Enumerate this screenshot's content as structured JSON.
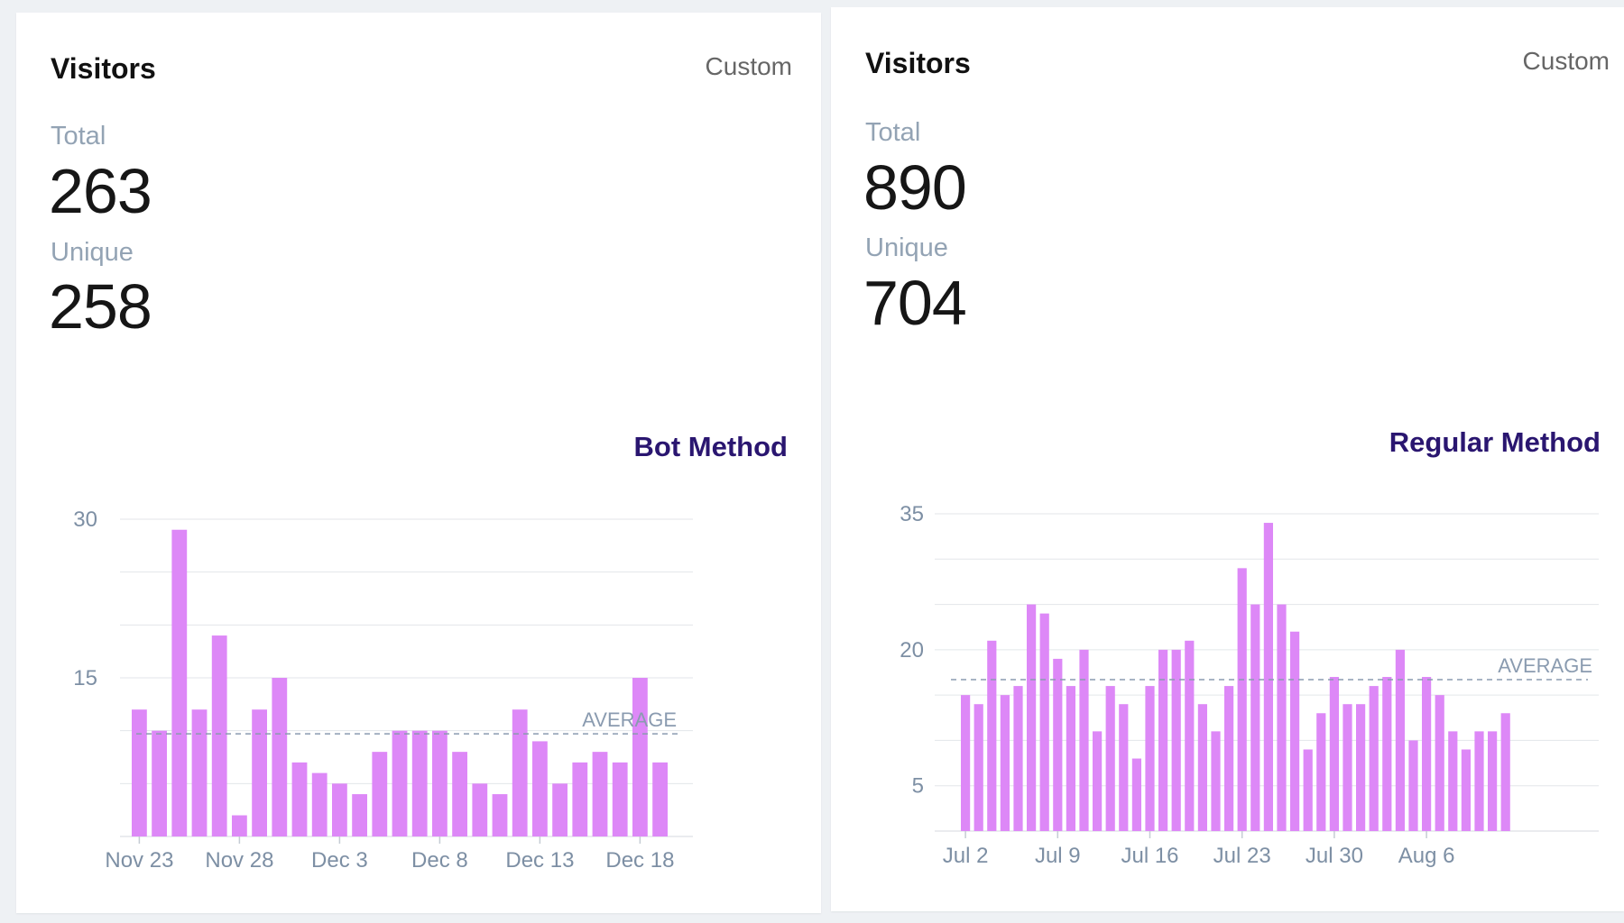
{
  "cards": [
    {
      "title": "Visitors",
      "range": "Custom",
      "total_label": "Total",
      "total_value": "263",
      "unique_label": "Unique",
      "unique_value": "258",
      "method_label": "Bot Method",
      "average_label": "AVERAGE"
    },
    {
      "title": "Visitors",
      "range": "Custom",
      "total_label": "Total",
      "total_value": "890",
      "unique_label": "Unique",
      "unique_value": "704",
      "method_label": "Regular Method",
      "average_label": "AVERAGE"
    }
  ],
  "colors": {
    "bar": "#dd88f7",
    "grid": "#e3e6ea",
    "average": "#8a9bb0",
    "method": "#2a1670"
  },
  "chart_data": [
    {
      "type": "bar",
      "title": "",
      "series": [
        {
          "values": [
            12,
            10,
            29,
            12,
            19,
            2,
            12,
            15,
            7,
            6,
            5,
            4,
            8,
            10,
            10,
            10,
            8,
            5,
            4,
            12,
            9,
            5,
            7,
            8,
            7,
            15,
            7
          ]
        }
      ],
      "x_tick_labels": [
        "Nov 23",
        "Nov 28",
        "Dec 3",
        "Dec 8",
        "Dec 13",
        "Dec 18"
      ],
      "y_ticks": [
        15,
        30
      ],
      "ylim": [
        0,
        30
      ],
      "average": 9.7,
      "grid": true
    },
    {
      "type": "bar",
      "title": "",
      "series": [
        {
          "values": [
            15,
            14,
            21,
            15,
            16,
            25,
            24,
            19,
            16,
            20,
            11,
            16,
            14,
            8,
            16,
            20,
            20,
            21,
            14,
            11,
            16,
            29,
            25,
            34,
            25,
            22,
            9,
            13,
            17,
            14,
            14,
            16,
            17,
            20,
            10,
            17,
            15,
            11,
            9,
            11,
            11,
            13
          ]
        }
      ],
      "x_tick_labels": [
        "Jul 2",
        "Jul 9",
        "Jul 16",
        "Jul 23",
        "Jul 30",
        "Aug 6"
      ],
      "y_ticks": [
        5,
        20,
        35
      ],
      "ylim": [
        0,
        35
      ],
      "average": 16.7,
      "grid": true
    }
  ]
}
